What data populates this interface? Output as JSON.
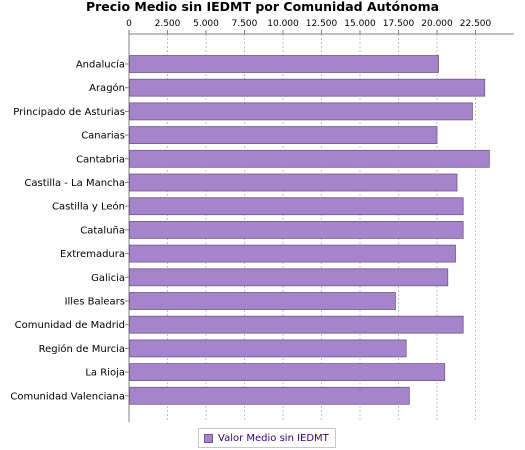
{
  "colors": {
    "bar_fill": "#a684cc",
    "bar_stroke": "#6e5a88",
    "grid": "#c0c0c0",
    "axis": "#808080",
    "legend_text": "#3a007a"
  },
  "chart_data": {
    "type": "bar",
    "orientation": "horizontal",
    "title": "Precio Medio sin IEDMT por Comunidad Autónoma",
    "xlabel": "",
    "ylabel": "",
    "xlim": [
      0,
      25000
    ],
    "x_ticks": [
      0,
      2500,
      5000,
      7500,
      10000,
      12500,
      15000,
      17500,
      20000,
      22500
    ],
    "x_tick_labels": [
      "0",
      "2.500",
      "5.000",
      "7.500",
      "10.000",
      "12.500",
      "15.000",
      "17.500",
      "20.000",
      "22.500"
    ],
    "x_axis_position": "top",
    "grid": true,
    "legend_position": "bottom-center",
    "categories": [
      "Andalucía",
      "Aragón",
      "Principado de Asturias",
      "Canarias",
      "Cantabria",
      "Castilla - La Mancha",
      "Castilla y León",
      "Cataluña",
      "Extremadura",
      "Galicia",
      "Illes Balears",
      "Comunidad de Madrid",
      "Región de Murcia",
      "La Rioja",
      "Comunidad Valenciana"
    ],
    "series": [
      {
        "name": "Valor Medio sin IEDMT",
        "values": [
          20100,
          23100,
          22300,
          20000,
          23400,
          21300,
          21700,
          21700,
          21200,
          20700,
          17300,
          21700,
          18000,
          20500,
          18200
        ]
      }
    ]
  }
}
